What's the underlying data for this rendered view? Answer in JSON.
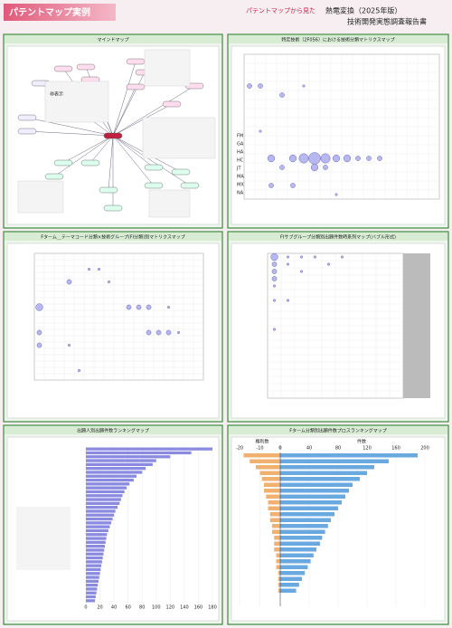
{
  "header": {
    "title": "パテントマップ実例",
    "lead": "パテントマップから見た",
    "report": "熱電変換（2025年版）",
    "report_sub": "技術開発実態調査報告書"
  },
  "panels": [
    {
      "title": "マインドマップ",
      "hidden_label": "非表示"
    },
    {
      "title": "特定技術（2F056）における技術分類マトリクスマップ",
      "row_labels": [
        "FM",
        "GA",
        "HA",
        "HC",
        "JT",
        "MA",
        "MX",
        "NA"
      ],
      "bubbles": [
        [
          0,
          3,
          2
        ],
        [
          1,
          3,
          2
        ],
        [
          3,
          4,
          2
        ],
        [
          5,
          3,
          1
        ],
        [
          2,
          11,
          3
        ],
        [
          4,
          11,
          3
        ],
        [
          5,
          11,
          4
        ],
        [
          6,
          11,
          5
        ],
        [
          7,
          11,
          4
        ],
        [
          8,
          11,
          3
        ],
        [
          9,
          11,
          3
        ],
        [
          10,
          11,
          2
        ],
        [
          11,
          11,
          2
        ],
        [
          12,
          11,
          2
        ],
        [
          3,
          12,
          2
        ],
        [
          6,
          12,
          3
        ],
        [
          7,
          12,
          2
        ],
        [
          2,
          14,
          2
        ],
        [
          4,
          14,
          2
        ],
        [
          1,
          8,
          1
        ],
        [
          8,
          15,
          1
        ]
      ]
    },
    {
      "title": "Fターム＿テーマコード分類×技術グループ(FI分類)別マトリクスマップ",
      "bubbles": [
        [
          3,
          4,
          2
        ],
        [
          7,
          4,
          1
        ],
        [
          0,
          8,
          3
        ],
        [
          9,
          8,
          2
        ],
        [
          10,
          8,
          2
        ],
        [
          11,
          8,
          2
        ],
        [
          13,
          8,
          1
        ],
        [
          0,
          12,
          2
        ],
        [
          11,
          12,
          2
        ],
        [
          12,
          12,
          2
        ],
        [
          13,
          12,
          2
        ],
        [
          14,
          12,
          1
        ],
        [
          0,
          14,
          2
        ],
        [
          3,
          14,
          1
        ],
        [
          5,
          2,
          1
        ],
        [
          6,
          2,
          1
        ],
        [
          4,
          18,
          1
        ]
      ]
    },
    {
      "title": "FIサブグループ分類別出願件数時系列マップ(バブル形式)",
      "bubbles": [
        [
          0,
          0,
          3
        ],
        [
          0,
          1,
          2
        ],
        [
          0,
          2,
          2
        ],
        [
          0,
          3,
          2
        ],
        [
          0,
          4,
          1
        ],
        [
          1,
          0,
          1
        ],
        [
          1,
          1,
          1
        ],
        [
          2,
          0,
          1
        ],
        [
          2,
          2,
          1
        ],
        [
          3,
          0,
          1
        ],
        [
          4,
          1,
          1
        ],
        [
          5,
          0,
          1
        ],
        [
          0,
          6,
          1
        ],
        [
          1,
          6,
          1
        ],
        [
          0,
          10,
          1
        ]
      ]
    },
    {
      "title": "出願人別出願件数ランキングマップ",
      "xlim": [
        0,
        180
      ],
      "xticks": [
        0,
        20,
        40,
        60,
        80,
        100,
        120,
        140,
        160,
        180
      ],
      "values": [
        180,
        150,
        120,
        100,
        95,
        85,
        80,
        72,
        68,
        62,
        58,
        55,
        52,
        50,
        48,
        45,
        42,
        40,
        38,
        36,
        34,
        32,
        30,
        29,
        28,
        27,
        26,
        25,
        24,
        23,
        22,
        21,
        20,
        19,
        18,
        17,
        16,
        15,
        14,
        13
      ]
    },
    {
      "title": "Fターム分類別出願件数プロスランキングマップ",
      "left_label": "権利数",
      "right_label": "件数",
      "left_lim": [
        -20,
        0
      ],
      "left_ticks": [
        -20,
        -10,
        0
      ],
      "right_lim": [
        0,
        200
      ],
      "right_ticks": [
        0,
        40,
        80,
        120,
        160,
        200
      ],
      "left_values": [
        -18,
        -15,
        -12,
        -10,
        -9,
        -8,
        -8,
        -7,
        -6,
        -6,
        -5,
        -5,
        -4,
        -4,
        -3,
        -3,
        -3,
        -2,
        -2,
        -2,
        -1,
        -1,
        -1,
        -1
      ],
      "right_values": [
        190,
        150,
        130,
        120,
        110,
        100,
        95,
        90,
        85,
        80,
        75,
        70,
        66,
        62,
        58,
        55,
        50,
        46,
        42,
        38,
        34,
        30,
        26,
        22
      ]
    }
  ]
}
